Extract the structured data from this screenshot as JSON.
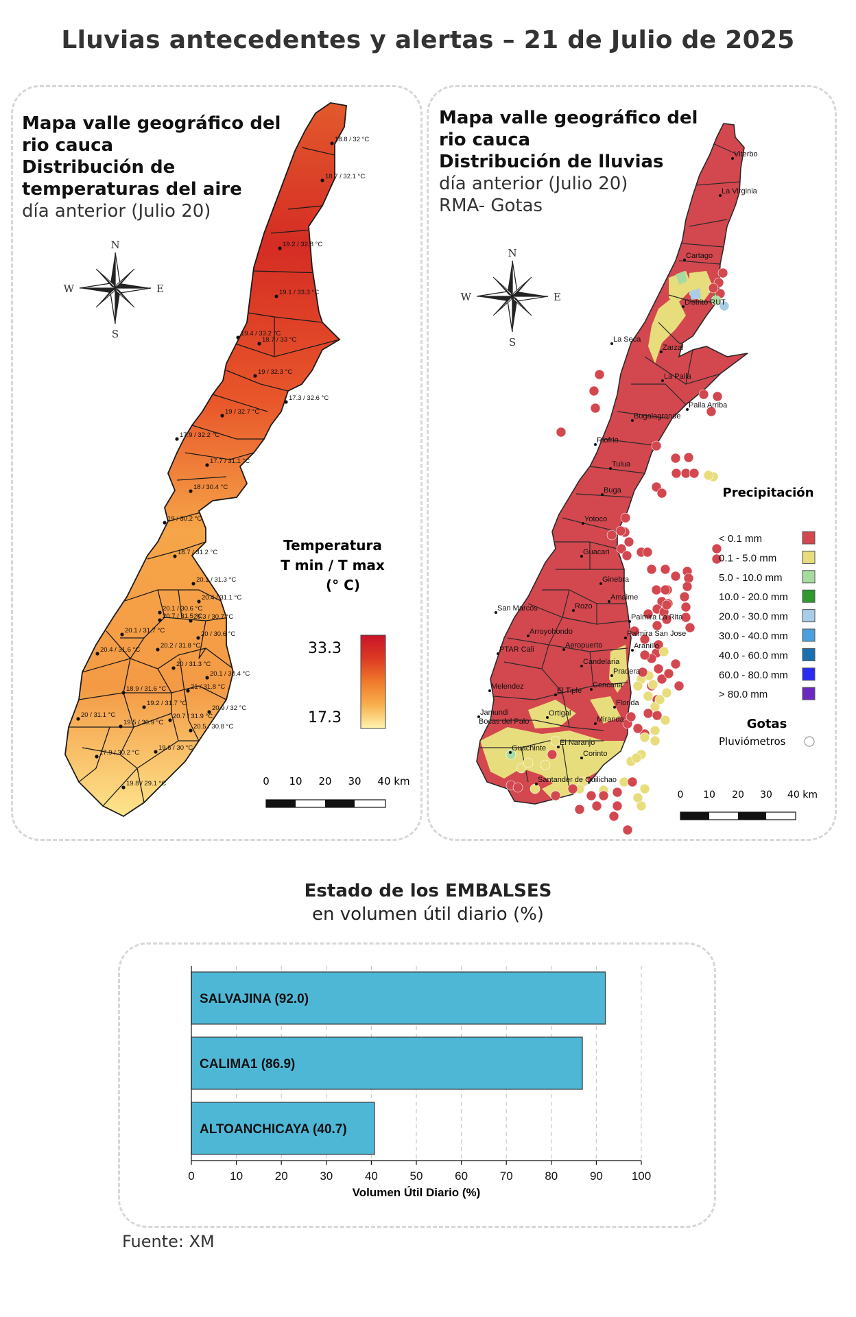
{
  "title": "Lluvias antecedentes y alertas – 21 de Julio de 2025",
  "temp_map": {
    "title_line1": "Mapa valle geográfico del",
    "title_line2": "rio cauca",
    "title_line3": "Distribución de",
    "title_line4": "temperaturas del aire",
    "subtitle": "día anterior (Julio 20)",
    "legend_title1": "Temperatura",
    "legend_title2": "T min / T max",
    "legend_title3": "(° C)",
    "legend_max": "33.3",
    "legend_min": "17.3",
    "scale_labels": [
      "0",
      "10",
      "20",
      "30",
      "40 km"
    ],
    "compass": {
      "n": "N",
      "s": "S",
      "e": "E",
      "w": "W"
    },
    "stations": [
      "18.8 / 32 °C",
      "18.7 / 32.1 °C",
      "19.2 / 32.8 °C",
      "19.1 / 33.3 °C",
      "19.4 / 33.2 °C",
      "18.7 / 33 °C",
      "19 / 32.3 °C",
      "17.3 / 32.6 °C",
      "19 / 32.7 °C",
      "17.9 / 32.2 °C",
      "17.7 / 31.1 °C",
      "18 / 30.4 °C",
      "19 / 30.2 °C",
      "18.7 / 31.2 °C",
      "20.1 / 31.3 °C",
      "20.4 / 31.1 °C",
      "20.1 / 30.6 °C",
      "20.7 / 31.5 °C",
      "20.3 / 30.7 °C",
      "20.1 / 31.7 °C",
      "20 / 30.6 °C",
      "20.4 / 31.6 °C",
      "20.2 / 31.8 °C",
      "20 / 31.3 °C",
      "20.1 / 30.4 °C",
      "18.9 / 31.6 °C",
      "21 / 31.8 °C",
      "19.2 / 31.7 °C",
      "20.9 / 32 °C",
      "20.7 / 31.9 °C",
      "20 / 31.1 °C",
      "19.5 / 30.9 °C",
      "20.5 / 30.8 °C",
      "19.6 / 30 °C",
      "17.9 / 30.2 °C",
      "19.8 / 29.1 °C"
    ]
  },
  "rain_map": {
    "title_line1": "Mapa valle geográfico del",
    "title_line2": "rio cauca",
    "title_line3": "Distribución de lluvias",
    "subtitle1": "día anterior (Julio 20)",
    "subtitle2": "RMA- Gotas",
    "legend_title": "Precipitación",
    "legend": [
      {
        "label": "< 0.1 mm",
        "color": "#d3474f"
      },
      {
        "label": "0.1 - 5.0 mm",
        "color": "#e8dd7c"
      },
      {
        "label": "5.0 - 10.0 mm",
        "color": "#a8dba0"
      },
      {
        "label": "10.0 - 20.0 mm",
        "color": "#2e9a2e"
      },
      {
        "label": "20.0 - 30.0 mm",
        "color": "#a9cde6"
      },
      {
        "label": "30.0 - 40.0 mm",
        "color": "#4c9fdc"
      },
      {
        "label": "40.0 - 60.0 mm",
        "color": "#1b6fae"
      },
      {
        "label": "60.0 - 80.0 mm",
        "color": "#2a2af0"
      },
      {
        "label": "> 80.0 mm",
        "color": "#6a2ac0"
      }
    ],
    "gotas_title": "Gotas",
    "gotas_label": "Pluviómetros",
    "scale_labels": [
      "0",
      "10",
      "20",
      "30",
      "40 km"
    ],
    "compass": {
      "n": "N",
      "s": "S",
      "e": "E",
      "w": "W"
    },
    "towns": [
      "Viterbo",
      "La Virginia",
      "Cartago",
      "Distrito RUT",
      "La Seca",
      "Zarzal",
      "La Paila",
      "Paila Arriba",
      "Bugalagrande",
      "Riofrio",
      "Tulua",
      "Buga",
      "Yotoco",
      "Guacari",
      "Ginebra",
      "Amaime",
      "San Marcos",
      "Rozo",
      "Palmira La Rita",
      "Arroyohondo",
      "Palmira San Jose",
      "PTAR Cali",
      "Aeropuerto",
      "Aranillo",
      "Candelaria",
      "Pradera",
      "Melendez",
      "El Tiple",
      "Cencana",
      "Florida",
      "Jamundi Bocas del Palo",
      "Ortigal",
      "Miranda",
      "El Naranjo",
      "Guachinte",
      "Corinto",
      "Santander de Quilichao"
    ]
  },
  "reservoirs": {
    "title_bold": "Estado de los EMBALSES",
    "title_normal": "en volumen útil diario (%)",
    "xlabel": "Volumen Útil Diario (%)",
    "source": "Fuente: XM"
  },
  "chart_data": {
    "type": "bar",
    "orientation": "horizontal",
    "categories": [
      "SALVAJINA",
      "CALIMA1",
      "ALTOANCHICAYA"
    ],
    "values": [
      92.0,
      86.9,
      40.7
    ],
    "bar_labels": [
      "SALVAJINA (92.0)",
      "CALIMA1 (86.9)",
      "ALTOANCHICAYA (40.7)"
    ],
    "xlabel": "Volumen Útil Diario (%)",
    "xlim": [
      0,
      100
    ],
    "xticks": [
      "0",
      "10",
      "20",
      "30",
      "40",
      "50",
      "60",
      "70",
      "80",
      "90",
      "100"
    ],
    "grid": "vertical dashed",
    "color": "#4fb7d6"
  }
}
